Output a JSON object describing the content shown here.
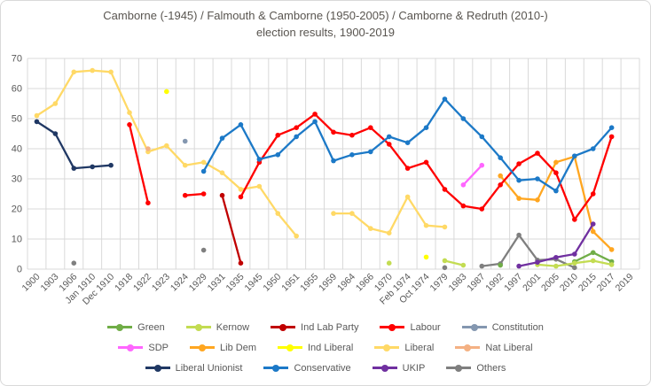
{
  "title": {
    "line1": "Camborne (-1945) / Falmouth & Camborne (1950-2005) / Camborne & Redruth (2010-)",
    "line2": "election results, 1900-2019"
  },
  "chart_data": {
    "type": "line",
    "title": "Camborne (-1945) / Falmouth & Camborne (1950-2005) / Camborne & Redruth (2010-) election results, 1900-2019",
    "xlabel": "",
    "ylabel": "",
    "ylim": [
      0,
      70
    ],
    "ytick_step": 10,
    "grid": true,
    "legend_position": "bottom",
    "categories": [
      "1900",
      "1903",
      "1906",
      "Jan 1910",
      "Dec 1910",
      "1918",
      "1922",
      "1923",
      "1924",
      "1929",
      "1931",
      "1935",
      "1945",
      "1950",
      "1951",
      "1955",
      "1959",
      "1964",
      "1966",
      "1970",
      "Feb 1974",
      "Oct 1974",
      "1979",
      "1983",
      "1987",
      "1992",
      "1997",
      "2001",
      "2005",
      "2010",
      "2015",
      "2017",
      "2019"
    ],
    "series": [
      {
        "name": "Green",
        "color": "#70AD47",
        "values": [
          null,
          null,
          null,
          null,
          null,
          null,
          null,
          null,
          null,
          null,
          null,
          null,
          null,
          null,
          null,
          null,
          null,
          null,
          null,
          null,
          null,
          null,
          null,
          null,
          null,
          1.3,
          null,
          null,
          null,
          2.5,
          5.5,
          2.5,
          null
        ]
      },
      {
        "name": "Kernow",
        "color": "#C3DC52",
        "values": [
          null,
          null,
          null,
          null,
          null,
          null,
          null,
          null,
          null,
          null,
          null,
          null,
          null,
          null,
          null,
          null,
          null,
          null,
          null,
          2,
          null,
          null,
          2.8,
          1.3,
          null,
          null,
          null,
          1.5,
          1,
          2,
          2.8,
          1.5,
          null
        ]
      },
      {
        "name": "Ind Lab Party",
        "color": "#C00000",
        "values": [
          null,
          null,
          null,
          null,
          null,
          null,
          null,
          null,
          null,
          null,
          24.5,
          2,
          null,
          null,
          null,
          null,
          null,
          null,
          null,
          null,
          null,
          null,
          null,
          null,
          null,
          null,
          null,
          null,
          null,
          null,
          null,
          null,
          null
        ]
      },
      {
        "name": "Labour",
        "color": "#FF0000",
        "values": [
          null,
          null,
          null,
          null,
          null,
          48,
          22,
          null,
          24.5,
          25,
          null,
          24,
          35.5,
          44.5,
          47,
          51.5,
          45.5,
          44.5,
          47,
          41.5,
          33.5,
          35.5,
          26.5,
          21,
          20,
          28,
          35,
          38.5,
          32,
          16.5,
          25,
          44,
          null
        ]
      },
      {
        "name": "Constitution",
        "color": "#8497B0",
        "values": [
          null,
          null,
          null,
          null,
          null,
          null,
          null,
          null,
          42.5,
          null,
          null,
          null,
          null,
          null,
          null,
          null,
          null,
          null,
          null,
          null,
          null,
          null,
          null,
          null,
          null,
          null,
          null,
          null,
          null,
          null,
          null,
          null,
          null
        ]
      },
      {
        "name": "SDP",
        "color": "#FF66FF",
        "values": [
          null,
          null,
          null,
          null,
          null,
          null,
          null,
          null,
          null,
          null,
          null,
          null,
          null,
          null,
          null,
          null,
          null,
          null,
          null,
          null,
          null,
          null,
          null,
          28,
          34.5,
          null,
          null,
          null,
          null,
          null,
          null,
          null,
          null
        ]
      },
      {
        "name": "Lib Dem",
        "color": "#FFA620",
        "values": [
          null,
          null,
          null,
          null,
          null,
          null,
          null,
          null,
          null,
          null,
          null,
          null,
          null,
          null,
          null,
          null,
          null,
          null,
          null,
          null,
          null,
          null,
          null,
          null,
          null,
          31,
          23.5,
          23,
          35.5,
          37.4,
          12.5,
          6.5,
          null
        ]
      },
      {
        "name": "Ind Liberal",
        "color": "#FFFF00",
        "values": [
          null,
          null,
          null,
          null,
          null,
          null,
          null,
          59,
          null,
          null,
          null,
          null,
          null,
          null,
          null,
          null,
          null,
          null,
          null,
          null,
          null,
          4,
          null,
          null,
          null,
          null,
          null,
          null,
          null,
          null,
          null,
          null,
          null
        ]
      },
      {
        "name": "Liberal",
        "color": "#FFD966",
        "values": [
          51,
          55,
          65.5,
          66,
          65.5,
          52,
          39,
          41,
          34.5,
          35.5,
          32,
          26.5,
          27.5,
          18.5,
          11,
          null,
          18.5,
          18.5,
          13.5,
          12,
          24,
          14.5,
          14,
          null,
          null,
          null,
          null,
          null,
          null,
          null,
          null,
          null,
          null
        ]
      },
      {
        "name": "Nat Liberal",
        "color": "#F4B183",
        "values": [
          null,
          null,
          null,
          null,
          null,
          null,
          40,
          null,
          null,
          null,
          null,
          null,
          null,
          null,
          null,
          null,
          null,
          null,
          null,
          null,
          null,
          null,
          null,
          null,
          null,
          null,
          null,
          null,
          null,
          null,
          null,
          null,
          null
        ]
      },
      {
        "name": "Liberal Unionist",
        "color": "#203864",
        "values": [
          49,
          45,
          33.5,
          34,
          34.5,
          null,
          null,
          null,
          null,
          null,
          null,
          null,
          null,
          null,
          null,
          null,
          null,
          null,
          null,
          null,
          null,
          null,
          null,
          null,
          null,
          null,
          null,
          null,
          null,
          null,
          null,
          null,
          null
        ]
      },
      {
        "name": "Conservative",
        "color": "#1C79C7",
        "values": [
          null,
          null,
          null,
          null,
          null,
          null,
          null,
          null,
          null,
          32.5,
          43.5,
          48,
          36.5,
          38,
          44,
          49,
          36,
          38,
          39,
          44,
          42,
          47,
          56.5,
          50,
          44,
          37,
          29.5,
          30,
          26,
          37.6,
          40,
          47,
          null
        ]
      },
      {
        "name": "UKIP",
        "color": "#7030A0",
        "values": [
          null,
          null,
          null,
          null,
          null,
          null,
          null,
          null,
          null,
          null,
          null,
          null,
          null,
          null,
          null,
          null,
          null,
          null,
          null,
          null,
          null,
          null,
          null,
          null,
          null,
          null,
          1,
          2.3,
          3.9,
          5,
          15,
          null,
          null
        ]
      },
      {
        "name": "Others",
        "color": "#7F7F7F",
        "values": [
          null,
          null,
          2,
          null,
          null,
          null,
          null,
          null,
          null,
          6.3,
          null,
          null,
          null,
          null,
          null,
          null,
          null,
          null,
          null,
          null,
          null,
          null,
          0.5,
          null,
          1,
          1.8,
          11.3,
          3,
          3.3,
          0.5,
          null,
          null,
          null
        ]
      }
    ],
    "draw_order": [
      "Liberal",
      "Liberal Unionist",
      "Nat Liberal",
      "Ind Liberal",
      "Constitution",
      "Others",
      "Green",
      "Kernow",
      "SDP",
      "Ind Lab Party",
      "Lib Dem",
      "Labour",
      "Conservative",
      "UKIP"
    ],
    "legend_rows": [
      [
        "Green",
        "Kernow",
        "Ind Lab Party",
        "Labour",
        "Constitution"
      ],
      [
        "SDP",
        "Lib Dem",
        "Ind Liberal",
        "Liberal",
        "Nat Liberal"
      ],
      [
        "Liberal Unionist",
        "Conservative",
        "UKIP",
        "Others"
      ]
    ],
    "colors": {
      "gridline": "#D9D9D9",
      "axis_text": "#595959",
      "title_text": "#595550",
      "background": "#FFFFFF",
      "border": "#D9D9D9"
    }
  }
}
